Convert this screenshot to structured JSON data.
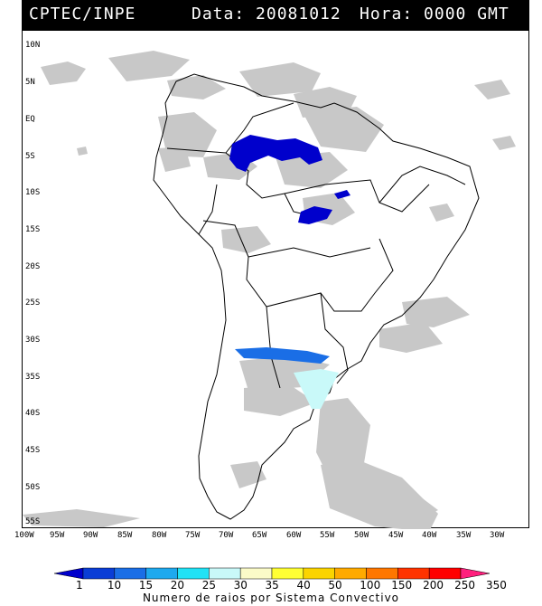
{
  "header": {
    "source": "CPTEC/INPE",
    "date_label": "Data: 20081012",
    "time_label": "Hora: 0000 GMT"
  },
  "lat_labels": [
    "10N",
    "5N",
    "EQ",
    "5S",
    "10S",
    "15S",
    "20S",
    "25S",
    "30S",
    "35S",
    "40S",
    "45S",
    "50S",
    "55S"
  ],
  "lon_labels": [
    "100W",
    "95W",
    "90W",
    "85W",
    "80W",
    "75W",
    "70W",
    "65W",
    "60W",
    "55W",
    "50W",
    "45W",
    "40W",
    "35W",
    "30W"
  ],
  "legend": {
    "title": "Numero de raios por Sistema Convectivo",
    "levels": [
      "1",
      "10",
      "15",
      "20",
      "25",
      "30",
      "35",
      "40",
      "50",
      "100",
      "150",
      "200",
      "250",
      "350"
    ],
    "colors": [
      "#0000cc",
      "#0a3dd6",
      "#1a6ee6",
      "#1ea9ee",
      "#21e2f5",
      "#c9f9f9",
      "#fbfbc8",
      "#ffff33",
      "#fbd400",
      "#ffaa00",
      "#ff7700",
      "#ff3300",
      "#ff0000",
      "#ff1f7d"
    ]
  },
  "colors": {
    "cloud": "#c8c8c8",
    "land_outline": "#000000"
  }
}
